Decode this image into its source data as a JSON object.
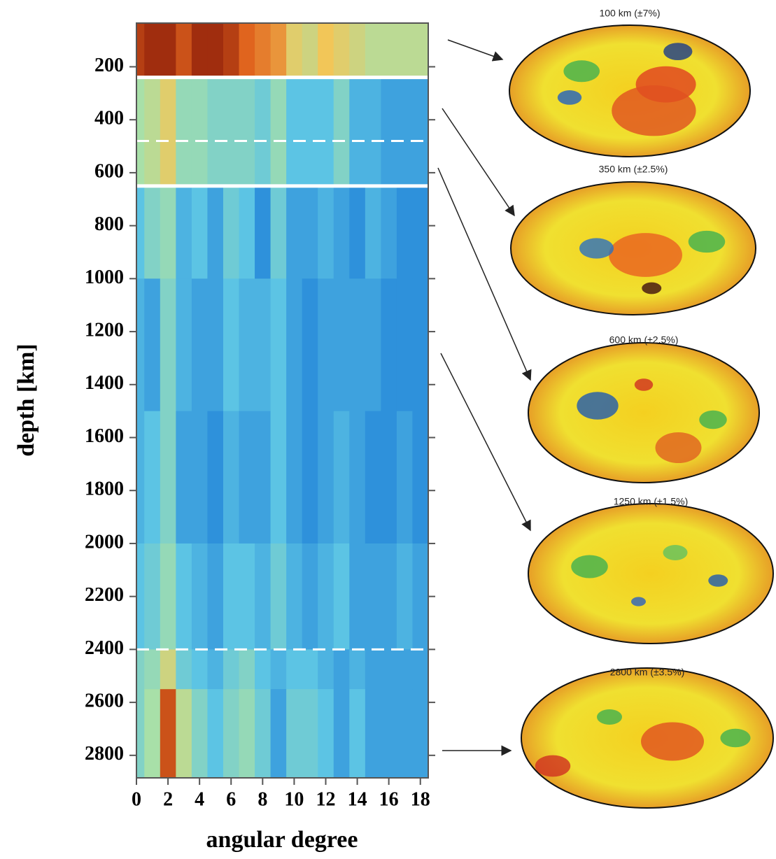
{
  "chart_data": {
    "type": "heatmap",
    "xlabel": "angular degree",
    "ylabel": "depth [km]",
    "x": [
      0,
      1,
      2,
      3,
      4,
      5,
      6,
      7,
      8,
      9,
      10,
      11,
      12,
      13,
      14,
      15,
      16,
      17,
      18
    ],
    "xlim": [
      0,
      18.5
    ],
    "xticks": [
      0,
      2,
      4,
      6,
      8,
      10,
      12,
      14,
      16,
      18
    ],
    "ylim": [
      35,
      2885
    ],
    "yticks": [
      200,
      400,
      600,
      800,
      1000,
      1200,
      1400,
      1600,
      1800,
      2000,
      2200,
      2400,
      2600,
      2800
    ],
    "y_edges": [
      35,
      240,
      650,
      1000,
      1500,
      2000,
      2400,
      2550,
      2885
    ],
    "z": [
      [
        0.9,
        0.95,
        0.95,
        0.85,
        0.95,
        0.95,
        0.9,
        0.8,
        0.75,
        0.7,
        0.55,
        0.5,
        0.6,
        0.55,
        0.5,
        0.45,
        0.45,
        0.45,
        0.45
      ],
      [
        0.4,
        0.45,
        0.55,
        0.35,
        0.35,
        0.3,
        0.3,
        0.3,
        0.25,
        0.35,
        0.2,
        0.2,
        0.2,
        0.3,
        0.15,
        0.15,
        0.1,
        0.1,
        0.1
      ],
      [
        0.2,
        0.3,
        0.35,
        0.15,
        0.2,
        0.1,
        0.25,
        0.2,
        0.05,
        0.25,
        0.1,
        0.1,
        0.15,
        0.1,
        0.05,
        0.15,
        0.1,
        0.05,
        0.05
      ],
      [
        0.15,
        0.1,
        0.3,
        0.15,
        0.1,
        0.1,
        0.2,
        0.15,
        0.15,
        0.2,
        0.1,
        0.05,
        0.1,
        0.1,
        0.1,
        0.1,
        0.05,
        0.05,
        0.05
      ],
      [
        0.15,
        0.2,
        0.3,
        0.1,
        0.1,
        0.05,
        0.15,
        0.1,
        0.1,
        0.2,
        0.1,
        0.05,
        0.1,
        0.15,
        0.1,
        0.05,
        0.05,
        0.1,
        0.05
      ],
      [
        0.2,
        0.25,
        0.35,
        0.2,
        0.15,
        0.1,
        0.2,
        0.2,
        0.15,
        0.25,
        0.15,
        0.1,
        0.15,
        0.2,
        0.1,
        0.1,
        0.1,
        0.15,
        0.1
      ],
      [
        0.3,
        0.35,
        0.5,
        0.25,
        0.2,
        0.15,
        0.25,
        0.3,
        0.2,
        0.15,
        0.2,
        0.2,
        0.15,
        0.1,
        0.15,
        0.1,
        0.1,
        0.1,
        0.1
      ],
      [
        0.3,
        0.4,
        0.85,
        0.45,
        0.3,
        0.2,
        0.3,
        0.35,
        0.25,
        0.1,
        0.25,
        0.25,
        0.2,
        0.1,
        0.2,
        0.1,
        0.1,
        0.1,
        0.1
      ]
    ],
    "colormap": [
      "#1f80d8",
      "#5cc4e4",
      "#a8e0a8",
      "#f2c658",
      "#e0641e",
      "#8a1a08"
    ],
    "hlines": [
      {
        "value": 240,
        "style": "solid"
      },
      {
        "value": 480,
        "style": "dashed"
      },
      {
        "value": 650,
        "style": "solid"
      },
      {
        "value": 2400,
        "style": "dashed"
      }
    ],
    "maps": [
      "100 km (±7%)",
      "350 km (±2.5%)",
      "600 km (±2.5%)",
      "1250 km (±1.5%)",
      "2800 km (±3.5%)"
    ]
  }
}
